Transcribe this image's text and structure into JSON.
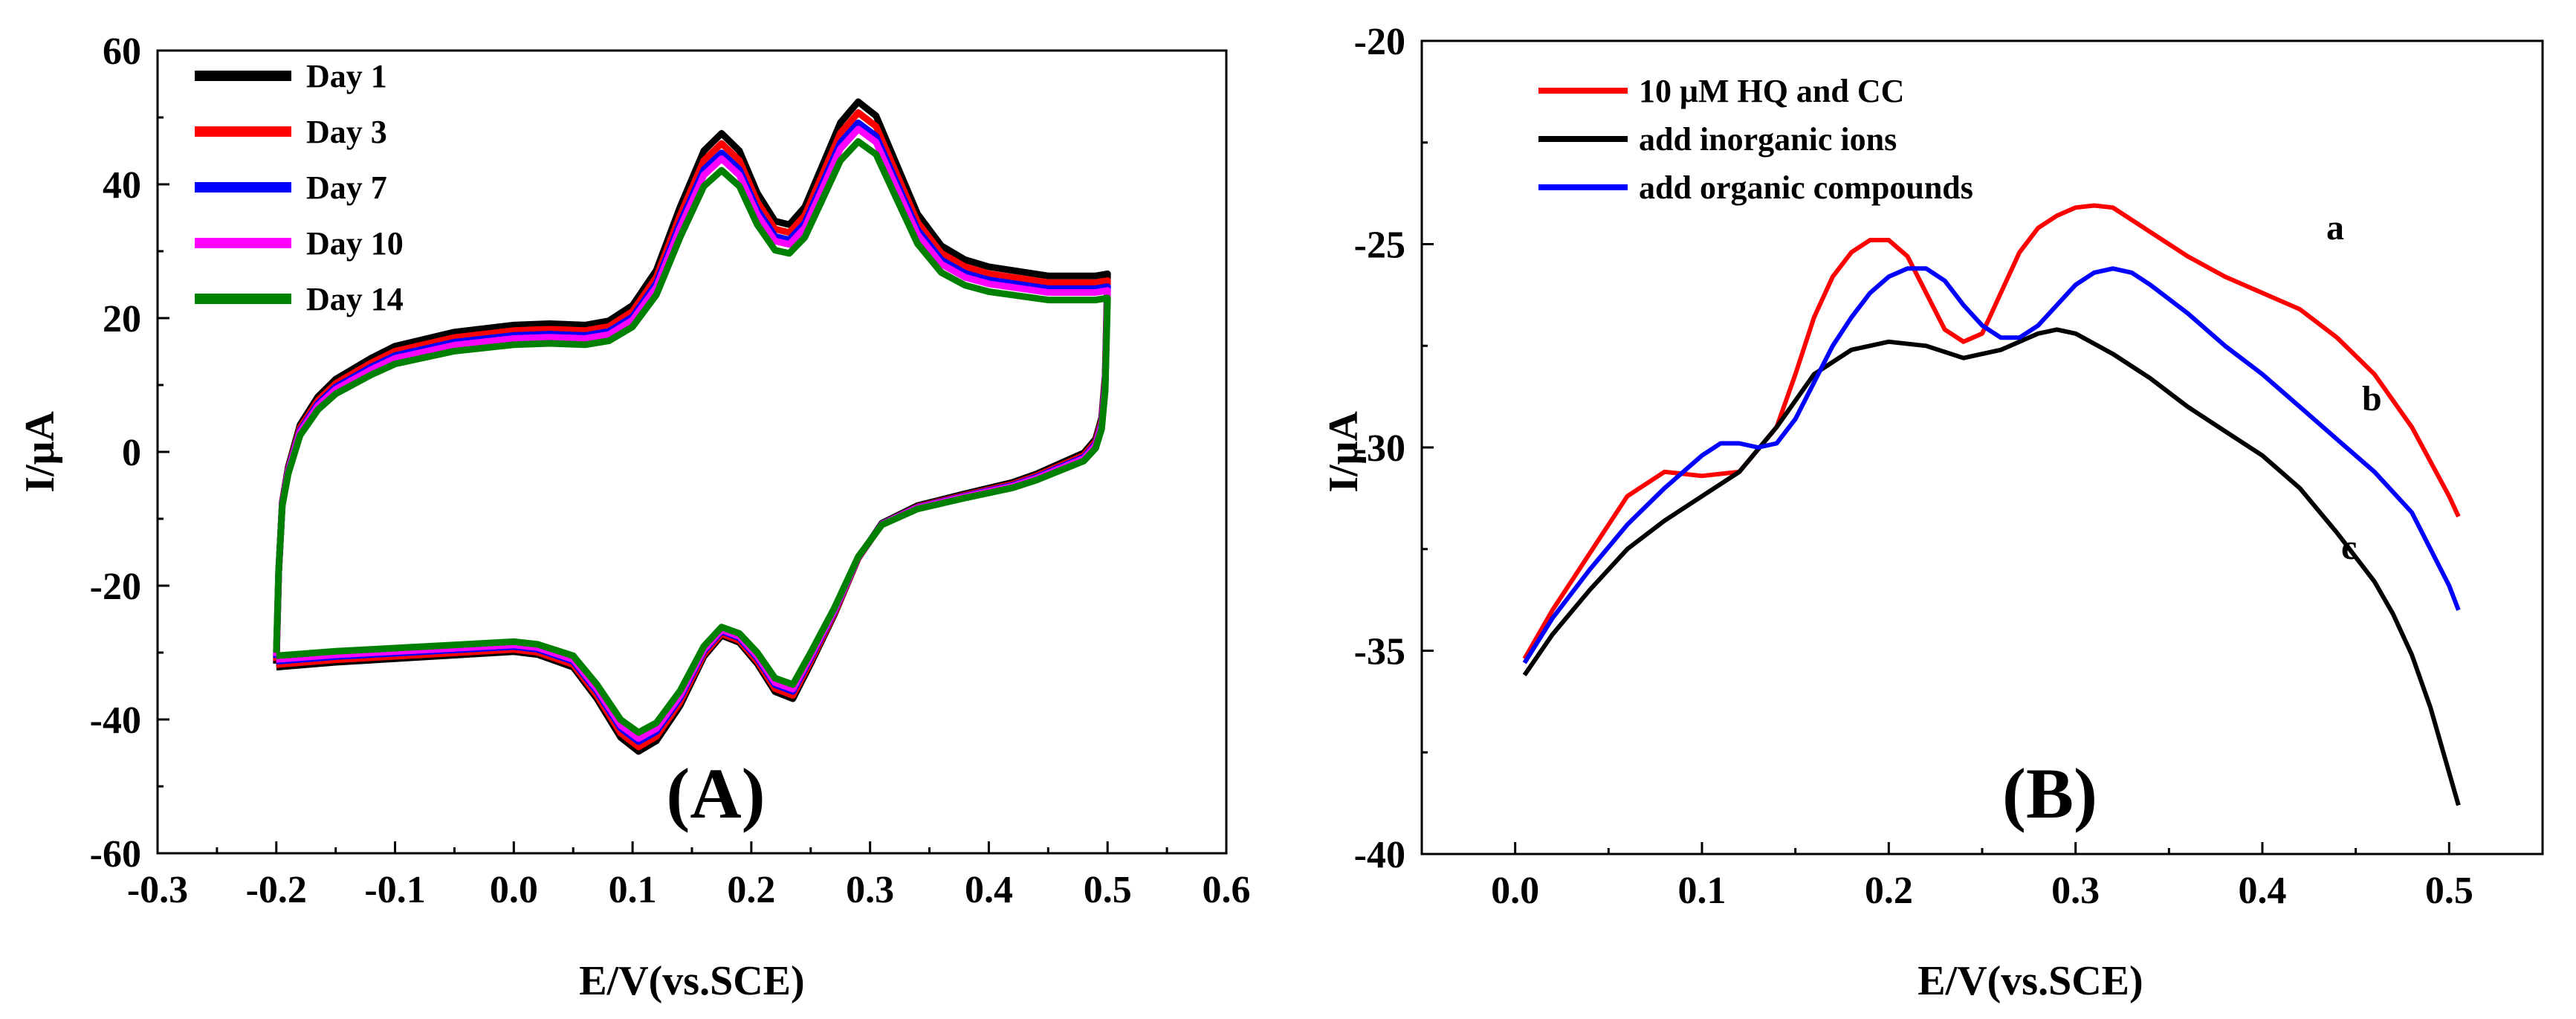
{
  "figure": {
    "background": "#ffffff"
  },
  "chart_data": [
    {
      "type": "line",
      "panel_label": "(A)",
      "xlabel": "E/V(vs.SCE)",
      "ylabel": "I/μA",
      "xlim": [
        -0.3,
        0.6
      ],
      "ylim": [
        -60,
        60
      ],
      "xticks": [
        -0.3,
        -0.2,
        -0.1,
        0.0,
        0.1,
        0.2,
        0.3,
        0.4,
        0.5,
        0.6
      ],
      "yticks": [
        -60,
        -40,
        -20,
        0,
        20,
        40,
        60
      ],
      "xtick_labels": [
        "-0.3",
        "-0.2",
        "-0.1",
        "0.0",
        "0.1",
        "0.2",
        "0.3",
        "0.4",
        "0.5",
        "0.6"
      ],
      "ytick_labels": [
        "-60",
        "-40",
        "-20",
        "0",
        "20",
        "40",
        "60"
      ],
      "legend_position": "top-left",
      "series": [
        {
          "name": "Day 1",
          "color": "#000000",
          "scale": 1.05,
          "shift": 0.9
        },
        {
          "name": "Day 3",
          "color": "#ff0000",
          "scale": 1.025,
          "shift": 0.5
        },
        {
          "name": "Day 7",
          "color": "#0000ff",
          "scale": 1.0,
          "shift": 0.2
        },
        {
          "name": "Day 10",
          "color": "#ff00ff",
          "scale": 0.985,
          "shift": 0.0
        },
        {
          "name": "Day 14",
          "color": "#008000",
          "scale": 0.955,
          "shift": -0.4
        }
      ],
      "cv_base": {
        "anodic": [
          [
            -0.2,
            -31
          ],
          [
            -0.198,
            -18
          ],
          [
            -0.195,
            -8
          ],
          [
            -0.19,
            -3
          ],
          [
            -0.18,
            3
          ],
          [
            -0.165,
            7
          ],
          [
            -0.15,
            9.5
          ],
          [
            -0.12,
            12.5
          ],
          [
            -0.1,
            14.2
          ],
          [
            -0.05,
            16.2
          ],
          [
            0.0,
            17.2
          ],
          [
            0.03,
            17.4
          ],
          [
            0.06,
            17.2
          ],
          [
            0.08,
            17.8
          ],
          [
            0.1,
            20
          ],
          [
            0.12,
            25
          ],
          [
            0.14,
            34
          ],
          [
            0.16,
            42
          ],
          [
            0.175,
            44.5
          ],
          [
            0.19,
            42
          ],
          [
            0.205,
            36
          ],
          [
            0.22,
            32
          ],
          [
            0.232,
            31.5
          ],
          [
            0.245,
            34
          ],
          [
            0.26,
            40
          ],
          [
            0.275,
            46
          ],
          [
            0.29,
            49
          ],
          [
            0.305,
            47
          ],
          [
            0.32,
            41
          ],
          [
            0.34,
            33
          ],
          [
            0.36,
            28.5
          ],
          [
            0.38,
            26.5
          ],
          [
            0.4,
            25.5
          ],
          [
            0.45,
            24.2
          ],
          [
            0.49,
            24.2
          ],
          [
            0.5,
            24.5
          ]
        ],
        "cathodic": [
          [
            0.5,
            24.5
          ],
          [
            0.498,
            10
          ],
          [
            0.495,
            4
          ],
          [
            0.49,
            1
          ],
          [
            0.48,
            -1
          ],
          [
            0.46,
            -2.5
          ],
          [
            0.44,
            -4
          ],
          [
            0.42,
            -5.2
          ],
          [
            0.38,
            -6.8
          ],
          [
            0.34,
            -8.5
          ],
          [
            0.31,
            -11
          ],
          [
            0.29,
            -16
          ],
          [
            0.27,
            -24
          ],
          [
            0.25,
            -31
          ],
          [
            0.235,
            -36
          ],
          [
            0.22,
            -35
          ],
          [
            0.205,
            -31
          ],
          [
            0.19,
            -28
          ],
          [
            0.175,
            -27
          ],
          [
            0.16,
            -30
          ],
          [
            0.14,
            -37
          ],
          [
            0.12,
            -42
          ],
          [
            0.105,
            -43.5
          ],
          [
            0.09,
            -41.5
          ],
          [
            0.07,
            -36
          ],
          [
            0.05,
            -31.5
          ],
          [
            0.02,
            -29.7
          ],
          [
            0.0,
            -29.3
          ],
          [
            -0.05,
            -29.8
          ],
          [
            -0.1,
            -30.3
          ],
          [
            -0.15,
            -30.8
          ],
          [
            -0.2,
            -31.5
          ]
        ]
      }
    },
    {
      "type": "line",
      "panel_label": "(B)",
      "xlabel": "E/V(vs.SCE)",
      "ylabel": "I/μA",
      "xlim": [
        -0.05,
        0.55
      ],
      "ylim": [
        -40,
        -20
      ],
      "xticks": [
        0.0,
        0.1,
        0.2,
        0.3,
        0.4,
        0.5
      ],
      "yticks": [
        -40,
        -35,
        -30,
        -25,
        -20
      ],
      "xtick_labels": [
        "0.0",
        "0.1",
        "0.2",
        "0.3",
        "0.4",
        "0.5"
      ],
      "ytick_labels": [
        "-40",
        "-35",
        "-30",
        "-25",
        "-20"
      ],
      "legend_position": "top-left",
      "series": [
        {
          "name": "10 μM HQ and CC",
          "color": "#ff0000",
          "curve_label": "a",
          "x": [
            0.005,
            0.02,
            0.04,
            0.06,
            0.08,
            0.1,
            0.12,
            0.14,
            0.15,
            0.16,
            0.17,
            0.18,
            0.19,
            0.2,
            0.21,
            0.22,
            0.23,
            0.24,
            0.25,
            0.26,
            0.27,
            0.28,
            0.29,
            0.3,
            0.31,
            0.32,
            0.34,
            0.36,
            0.38,
            0.4,
            0.42,
            0.44,
            0.46,
            0.48,
            0.5,
            0.505
          ],
          "y": [
            -35.2,
            -34.0,
            -32.6,
            -31.2,
            -30.6,
            -30.7,
            -30.6,
            -29.5,
            -28.2,
            -26.8,
            -25.8,
            -25.2,
            -24.9,
            -24.9,
            -25.3,
            -26.2,
            -27.1,
            -27.4,
            -27.2,
            -26.2,
            -25.2,
            -24.6,
            -24.3,
            -24.1,
            -24.05,
            -24.1,
            -24.7,
            -25.3,
            -25.8,
            -26.2,
            -26.6,
            -27.3,
            -28.2,
            -29.5,
            -31.2,
            -31.7
          ]
        },
        {
          "name": "add inorganic ions",
          "color": "#000000",
          "curve_label": "c",
          "x": [
            0.005,
            0.02,
            0.04,
            0.06,
            0.08,
            0.1,
            0.12,
            0.14,
            0.16,
            0.18,
            0.2,
            0.22,
            0.24,
            0.26,
            0.28,
            0.29,
            0.3,
            0.32,
            0.34,
            0.36,
            0.38,
            0.4,
            0.42,
            0.44,
            0.46,
            0.47,
            0.48,
            0.49,
            0.5,
            0.505
          ],
          "y": [
            -35.6,
            -34.6,
            -33.5,
            -32.5,
            -31.8,
            -31.2,
            -30.6,
            -29.5,
            -28.2,
            -27.6,
            -27.4,
            -27.5,
            -27.8,
            -27.6,
            -27.2,
            -27.1,
            -27.2,
            -27.7,
            -28.3,
            -29.0,
            -29.6,
            -30.2,
            -31.0,
            -32.1,
            -33.3,
            -34.1,
            -35.1,
            -36.4,
            -38.0,
            -38.8
          ]
        },
        {
          "name": "add organic compounds",
          "color": "#0000ff",
          "curve_label": "b",
          "x": [
            0.005,
            0.02,
            0.04,
            0.06,
            0.08,
            0.1,
            0.11,
            0.12,
            0.13,
            0.14,
            0.15,
            0.16,
            0.17,
            0.18,
            0.19,
            0.2,
            0.21,
            0.22,
            0.23,
            0.24,
            0.25,
            0.26,
            0.27,
            0.28,
            0.29,
            0.3,
            0.31,
            0.32,
            0.33,
            0.34,
            0.36,
            0.38,
            0.4,
            0.42,
            0.44,
            0.46,
            0.48,
            0.5,
            0.505
          ],
          "y": [
            -35.3,
            -34.2,
            -33.0,
            -31.9,
            -31.0,
            -30.2,
            -29.9,
            -29.9,
            -30.0,
            -29.9,
            -29.3,
            -28.4,
            -27.5,
            -26.8,
            -26.2,
            -25.8,
            -25.6,
            -25.6,
            -25.9,
            -26.5,
            -27.0,
            -27.3,
            -27.3,
            -27.0,
            -26.5,
            -26.0,
            -25.7,
            -25.6,
            -25.7,
            -26.0,
            -26.7,
            -27.5,
            -28.2,
            -29.0,
            -29.8,
            -30.6,
            -31.6,
            -33.4,
            -34.0
          ]
        }
      ]
    }
  ]
}
